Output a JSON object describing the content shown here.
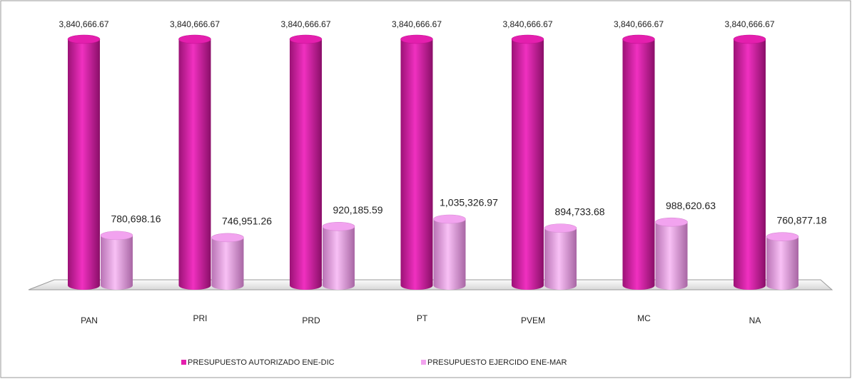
{
  "chart_data": {
    "type": "bar",
    "categories": [
      "PAN",
      "PRI",
      "PRD",
      "PT",
      "PVEM",
      "MC",
      "NA"
    ],
    "series": [
      {
        "name": "PRESUPUESTO AUTORIZADO ENE-DIC",
        "color": "#e41fae",
        "values": [
          3840666.67,
          3840666.67,
          3840666.67,
          3840666.67,
          3840666.67,
          3840666.67,
          3840666.67
        ],
        "value_labels": [
          "3,840,666.67",
          "3,840,666.67",
          "3,840,666.67",
          "3,840,666.67",
          "3,840,666.67",
          "3,840,666.67",
          "3,840,666.67"
        ]
      },
      {
        "name": "PRESUPUESTO EJERCIDO ENE-MAR",
        "color": "#f2a3ef",
        "values": [
          780698.16,
          746951.26,
          920185.59,
          1035326.97,
          894733.68,
          988620.63,
          760877.18
        ],
        "value_labels": [
          "780,698.16",
          "746,951.26",
          "920,185.59",
          "1,035,326.97",
          "894,733.68",
          "988,620.63",
          "760,877.18"
        ]
      }
    ],
    "legend": "bottom"
  }
}
